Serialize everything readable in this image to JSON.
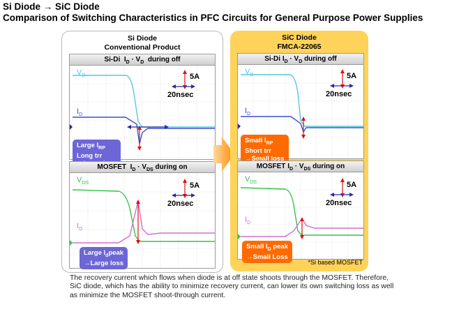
{
  "title": {
    "line1": "Si Diode → SiC Diode",
    "line2": "Comparison of Switching Characteristics in PFC Circuits for General Purpose Power Supplies"
  },
  "left_panel": {
    "title_line1": "Si Diode",
    "title_line2": "Conventional Product",
    "scope_off": {
      "header": "Si-Di  I_D · V_D  during off",
      "vlabel": "V_D",
      "ilabel": "I_D",
      "amp_label": "5A",
      "time_label": "20nsec",
      "callout": "Large I_RP\nLong trr\n→Large loss"
    },
    "scope_on": {
      "header": "MOSFET  I_D · V_DS during on",
      "vlabel": "V_DS",
      "ilabel": "I_D",
      "amp_label": "5A",
      "time_label": "20nsec",
      "callout": "Large I_Dpeak\n→Large loss"
    }
  },
  "right_panel": {
    "title_line1": "SiC Diode",
    "title_line2": "FMCA-22065",
    "scope_off": {
      "header": "Si-Di I_D · V_D during off",
      "vlabel": "V_D",
      "ilabel": "I_D",
      "amp_label": "5A",
      "time_label": "20nsec",
      "callout": "Small I_RP\nShort trr\n→Small loss"
    },
    "scope_on": {
      "header": "MOSFET I_D · V_DS during on",
      "vlabel": "V_DS",
      "ilabel": "I_D",
      "amp_label": "5A",
      "time_label": "20nsec",
      "callout": "Small I_D peak\n→Small Loss"
    },
    "note": "*Si based MOSFET"
  },
  "caption": "The recovery current which flows when diode is at off state shoots through the MOSFET.  Therefore, SiC diode, which has the ability to minimize recovery current, can lower its own switching loss as well as minimize the MOSFET shoot-through current.",
  "colors": {
    "vd_trace": "#55c8e0",
    "id_trace_off": "#3a4fd0",
    "vds_trace": "#35c24b",
    "id_trace_on": "#d070d0",
    "marker_red": "#e01010",
    "marker_blue": "#2a2aa0",
    "callout_blue": "#6d66d6",
    "callout_orange": "#ff6a00",
    "panel_sic": "#ffd35a"
  }
}
